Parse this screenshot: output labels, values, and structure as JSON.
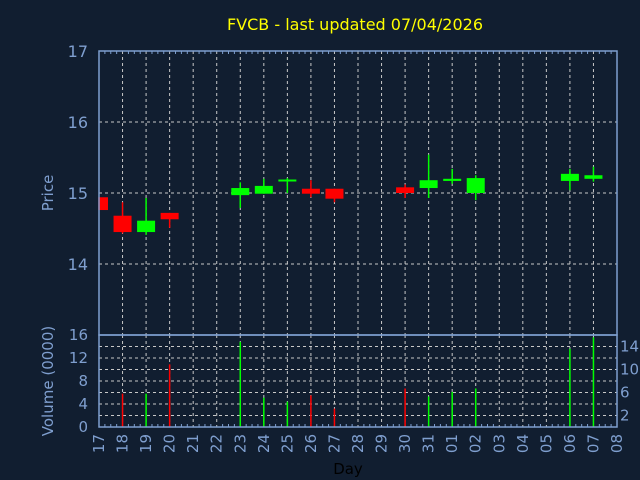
{
  "chart_data": [
    {
      "type": "candlestick",
      "title": "FVCB - last updated 07/04/2026",
      "xlabel": "Day",
      "ylabel": "Price",
      "ylim": [
        13.0,
        17
      ],
      "yticks": [
        "14",
        "15",
        "16",
        "17"
      ],
      "xticks": [
        "17",
        "18",
        "19",
        "20",
        "21",
        "22",
        "23",
        "24",
        "25",
        "26",
        "27",
        "28",
        "29",
        "30",
        "31",
        "01",
        "02",
        "03",
        "04",
        "05",
        "06",
        "07",
        "08"
      ],
      "grid": true,
      "colors": {
        "up": "#00ff00",
        "down": "#ff0000",
        "title": "#ffff00",
        "axis": "#7f9fcf",
        "background": "#111e30"
      },
      "candles": [
        {
          "day": "17",
          "open": 14.94,
          "high": 14.94,
          "low": 14.76,
          "close": 14.76
        },
        {
          "day": "18",
          "open": 14.68,
          "high": 14.87,
          "low": 14.43,
          "close": 14.45
        },
        {
          "day": "19",
          "open": 14.45,
          "high": 14.93,
          "low": 14.41,
          "close": 14.61
        },
        {
          "day": "20",
          "open": 14.72,
          "high": 14.72,
          "low": 14.51,
          "close": 14.63
        },
        {
          "day": "23",
          "open": 14.97,
          "high": 15.15,
          "low": 14.79,
          "close": 15.07
        },
        {
          "day": "24",
          "open": 14.99,
          "high": 15.2,
          "low": 14.99,
          "close": 15.1
        },
        {
          "day": "25",
          "open": 15.17,
          "high": 15.21,
          "low": 15.0,
          "close": 15.19
        },
        {
          "day": "26",
          "open": 15.06,
          "high": 15.18,
          "low": 14.94,
          "close": 14.99
        },
        {
          "day": "27",
          "open": 15.06,
          "high": 15.06,
          "low": 14.87,
          "close": 14.92
        },
        {
          "day": "30",
          "open": 15.08,
          "high": 15.12,
          "low": 14.93,
          "close": 15.0
        },
        {
          "day": "31",
          "open": 15.07,
          "high": 15.54,
          "low": 14.93,
          "close": 15.18
        },
        {
          "day": "01",
          "open": 15.17,
          "high": 15.34,
          "low": 15.13,
          "close": 15.2
        },
        {
          "day": "02",
          "open": 15.0,
          "high": 15.25,
          "low": 14.9,
          "close": 15.21
        },
        {
          "day": "06",
          "open": 15.17,
          "high": 15.34,
          "low": 15.04,
          "close": 15.27
        },
        {
          "day": "07",
          "open": 15.2,
          "high": 15.37,
          "low": 15.16,
          "close": 15.25
        }
      ]
    },
    {
      "type": "bar",
      "xlabel": "Day",
      "ylabel": "Volume (0000)",
      "ylim": [
        0,
        16
      ],
      "yticks": [
        "0",
        "2",
        "4",
        "6",
        "8",
        "10",
        "12",
        "14",
        "16"
      ],
      "grid": true,
      "bars": [
        {
          "day": "18",
          "value": 5.8,
          "dir": "down"
        },
        {
          "day": "19",
          "value": 5.8,
          "dir": "up"
        },
        {
          "day": "20",
          "value": 10.9,
          "dir": "down"
        },
        {
          "day": "23",
          "value": 14.8,
          "dir": "up"
        },
        {
          "day": "24",
          "value": 5.1,
          "dir": "up"
        },
        {
          "day": "25",
          "value": 4.4,
          "dir": "up"
        },
        {
          "day": "26",
          "value": 5.5,
          "dir": "down"
        },
        {
          "day": "27",
          "value": 3.2,
          "dir": "down"
        },
        {
          "day": "30",
          "value": 6.7,
          "dir": "down"
        },
        {
          "day": "31",
          "value": 5.3,
          "dir": "up"
        },
        {
          "day": "01",
          "value": 6.1,
          "dir": "up"
        },
        {
          "day": "02",
          "value": 6.7,
          "dir": "up"
        },
        {
          "day": "06",
          "value": 13.6,
          "dir": "up"
        },
        {
          "day": "07",
          "value": 15.6,
          "dir": "up"
        }
      ]
    }
  ]
}
